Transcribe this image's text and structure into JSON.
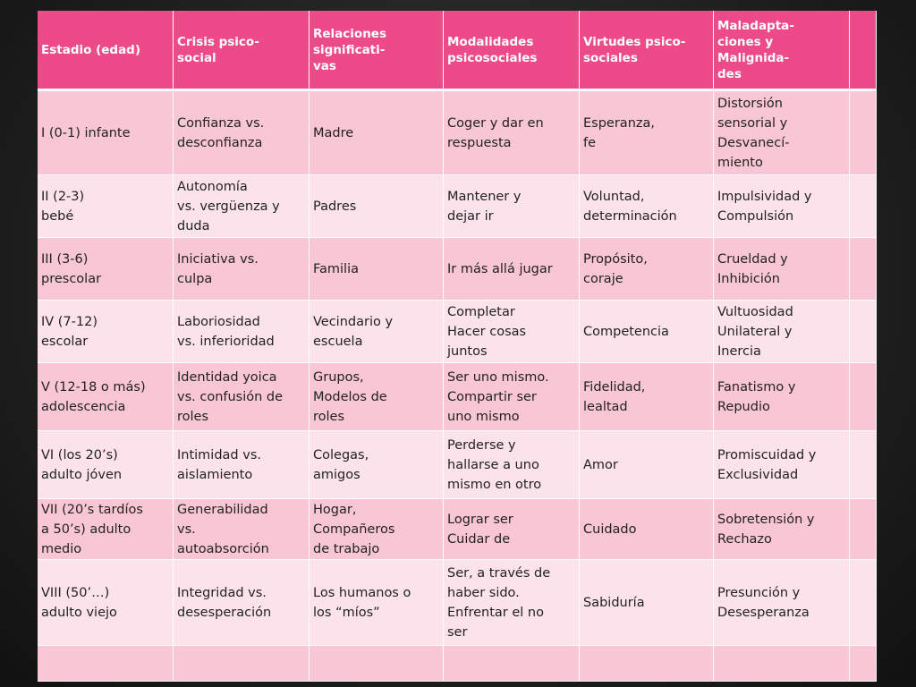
{
  "table": {
    "header": [
      [
        "Estadio (edad)"
      ],
      [
        "Crisis psico-",
        "social"
      ],
      [
        "Relaciones",
        "significati-",
        "vas"
      ],
      [
        "Modalidades",
        "psicosociales"
      ],
      [
        "Virtudes psico-",
        "sociales"
      ],
      [
        "Maladapta-",
        "ciones y",
        "Malignida-",
        "des"
      ]
    ],
    "rows": [
      [
        [
          "I (0-1) infante"
        ],
        [
          "Confianza vs.",
          "desconfianza"
        ],
        [
          "Madre"
        ],
        [
          "Coger y dar en",
          "respuesta"
        ],
        [
          "Esperanza,",
          "fe"
        ],
        [
          "Distorsión",
          "sensorial y",
          "Desvanecí-",
          "miento"
        ]
      ],
      [
        [
          "II (2-3)",
          "bebé"
        ],
        [
          "Autonomía",
          "vs. vergüenza y",
          "duda"
        ],
        [
          "Padres"
        ],
        [
          "Mantener y",
          "dejar ir"
        ],
        [
          "Voluntad,",
          "determinación"
        ],
        [
          "Impulsividad y",
          "Compulsión"
        ]
      ],
      [
        [
          "III (3-6)",
          "prescolar"
        ],
        [
          "Iniciativa vs.",
          "culpa"
        ],
        [
          "Familia"
        ],
        [
          "Ir más allá jugar"
        ],
        [
          "Propósito,",
          "coraje"
        ],
        [
          "Crueldad y",
          "Inhibición"
        ]
      ],
      [
        [
          "IV (7-12)",
          "escolar"
        ],
        [
          "Laboriosidad",
          "vs. inferioridad"
        ],
        [
          "Vecindario y",
          "escuela"
        ],
        [
          "Completar",
          "Hacer cosas",
          "juntos"
        ],
        [
          "Competencia"
        ],
        [
          "Vultuosidad",
          "Unilateral y",
          "Inercia"
        ]
      ],
      [
        [
          "V (12-18 o más)",
          "adolescencia"
        ],
        [
          "Identidad yoica",
          "vs. confusión de",
          "roles"
        ],
        [
          "Grupos,",
          "Modelos de",
          "roles"
        ],
        [
          "Ser uno mismo.",
          "Compartir ser",
          "uno mismo"
        ],
        [
          "Fidelidad,",
          "lealtad"
        ],
        [
          "Fanatismo y",
          "Repudio"
        ]
      ],
      [
        [
          "VI (los 20’s)",
          "adulto jóven"
        ],
        [
          "Intimidad vs.",
          "aislamiento"
        ],
        [
          "Colegas,",
          "amigos"
        ],
        [
          "Perderse y",
          "hallarse a uno",
          "mismo en otro"
        ],
        [
          "Amor"
        ],
        [
          "Promiscuidad y",
          "Exclusividad"
        ]
      ],
      [
        [
          "VII (20’s tardíos",
          "a 50’s) adulto",
          "medio"
        ],
        [
          "Generabilidad",
          "vs.",
          "autoabsorción"
        ],
        [
          "Hogar,",
          "Compañeros",
          "de trabajo"
        ],
        [
          "Lograr ser",
          "Cuidar de"
        ],
        [
          "Cuidado"
        ],
        [
          "Sobretensión y",
          "Rechazo"
        ]
      ],
      [
        [
          "VIII (50’…)",
          "adulto viejo"
        ],
        [
          "Integridad vs.",
          "desesperación"
        ],
        [
          "Los humanos o",
          "los “míos”"
        ],
        [
          "Ser, a través de",
          "haber sido.",
          "Enfrentar el no",
          "ser"
        ],
        [
          "Sabiduría"
        ],
        [
          "Presunción y",
          "Desesperanza"
        ]
      ]
    ]
  }
}
